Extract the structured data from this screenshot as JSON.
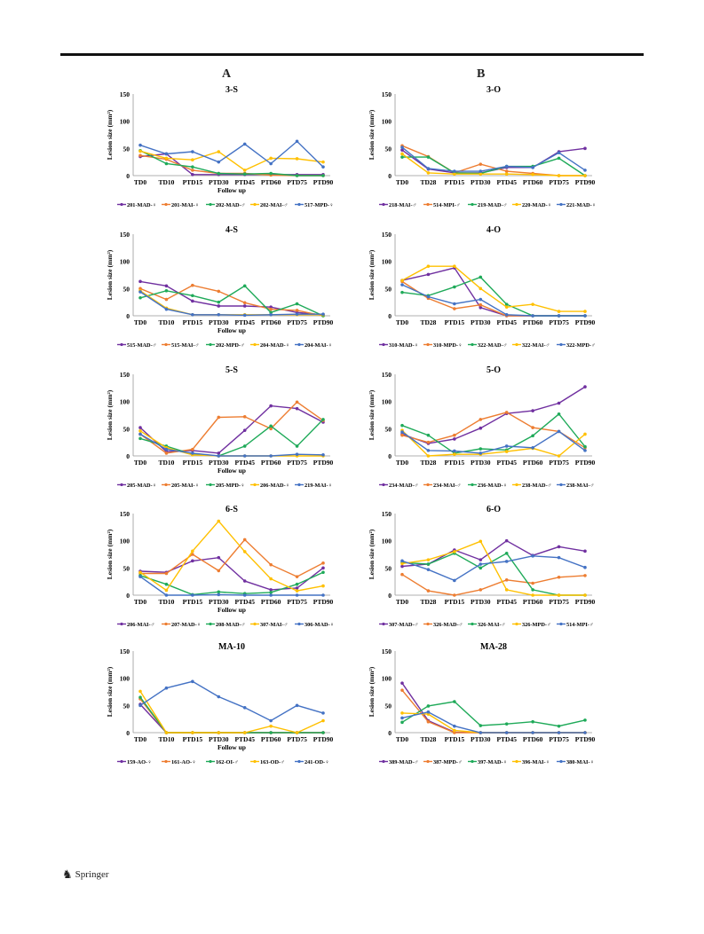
{
  "columns": [
    "A",
    "B"
  ],
  "footer": {
    "publisher": "Springer"
  },
  "chart_data": [
    {
      "type": "line",
      "title": "3-S",
      "xlabel": "Follow up",
      "ylabel": "Lesion size (mm²)",
      "ylim": [
        0,
        150
      ],
      "yticks": [
        0,
        50,
        100,
        150
      ],
      "grid": false,
      "legend": "bottom",
      "categories": [
        "TD0",
        "TD10",
        "PTD15",
        "PTD30",
        "PTD45",
        "PTD60",
        "PTD75",
        "PTD90"
      ],
      "series": [
        {
          "name": "201-MAD-♀",
          "color": "#7030a0",
          "values": [
            35,
            40,
            2,
            2,
            2,
            2,
            2,
            2
          ]
        },
        {
          "name": "201-MAI-♀",
          "color": "#ed7d31",
          "values": [
            37,
            30,
            10,
            4,
            4,
            1,
            0,
            0
          ]
        },
        {
          "name": "202-MAD-♂",
          "color": "#1faa59",
          "values": [
            46,
            22,
            16,
            4,
            3,
            4,
            0,
            0
          ]
        },
        {
          "name": "202-MAI-♂",
          "color": "#ffc000",
          "values": [
            45,
            32,
            29,
            44,
            10,
            32,
            31,
            25
          ]
        },
        {
          "name": "517-MPD-♀",
          "color": "#4472c4",
          "values": [
            56,
            40,
            44,
            25,
            58,
            22,
            63,
            16
          ]
        }
      ]
    },
    {
      "type": "line",
      "title": "3-O",
      "xlabel": "",
      "ylabel": "Lesion size (mm²)",
      "ylim": [
        0,
        150
      ],
      "yticks": [
        0,
        50,
        100,
        150
      ],
      "grid": false,
      "legend": "bottom",
      "categories": [
        "TD0",
        "TD28",
        "PTD15",
        "PTD30",
        "PTD45",
        "PTD60",
        "PTD75",
        "PTD90"
      ],
      "series": [
        {
          "name": "218-MAI-♂",
          "color": "#7030a0",
          "values": [
            47,
            12,
            5,
            5,
            15,
            15,
            44,
            50
          ]
        },
        {
          "name": "514-MPI-♂",
          "color": "#ed7d31",
          "values": [
            55,
            35,
            5,
            21,
            8,
            4,
            0,
            0
          ]
        },
        {
          "name": "219-MAD-♂",
          "color": "#1faa59",
          "values": [
            34,
            34,
            5,
            4,
            17,
            17,
            32,
            0
          ]
        },
        {
          "name": "220-MAD-♀",
          "color": "#ffc000",
          "values": [
            40,
            5,
            3,
            3,
            3,
            2,
            0,
            0
          ]
        },
        {
          "name": "221-MAD-♀",
          "color": "#4472c4",
          "values": [
            52,
            13,
            8,
            8,
            17,
            15,
            42,
            10
          ]
        }
      ]
    },
    {
      "type": "line",
      "title": "4-S",
      "xlabel": "Follow up",
      "ylabel": "Lesion size (mm²)",
      "ylim": [
        0,
        150
      ],
      "yticks": [
        0,
        50,
        100,
        150
      ],
      "grid": false,
      "legend": "bottom",
      "categories": [
        "TD0",
        "TD10",
        "PTD15",
        "PTD30",
        "PTD45",
        "PTD60",
        "PTD75",
        "PTD90"
      ],
      "series": [
        {
          "name": "515-MAD-♂",
          "color": "#7030a0",
          "values": [
            63,
            55,
            27,
            18,
            18,
            16,
            6,
            2
          ]
        },
        {
          "name": "515-MAI-♂",
          "color": "#ed7d31",
          "values": [
            50,
            30,
            56,
            45,
            24,
            12,
            10,
            0
          ]
        },
        {
          "name": "202-MPD-♂",
          "color": "#1faa59",
          "values": [
            33,
            46,
            37,
            25,
            55,
            6,
            22,
            0
          ]
        },
        {
          "name": "204-MAD-♀",
          "color": "#ffc000",
          "values": [
            46,
            14,
            2,
            2,
            2,
            2,
            2,
            2
          ]
        },
        {
          "name": "204-MAI-♀",
          "color": "#4472c4",
          "values": [
            44,
            12,
            2,
            2,
            1,
            2,
            3,
            3
          ]
        }
      ]
    },
    {
      "type": "line",
      "title": "4-O",
      "xlabel": "",
      "ylabel": "Lesion size (mm²)",
      "ylim": [
        0,
        150
      ],
      "yticks": [
        0,
        50,
        100,
        150
      ],
      "grid": false,
      "legend": "bottom",
      "categories": [
        "TD0",
        "TD28",
        "PTD15",
        "PTD30",
        "PTD45",
        "PTD60",
        "PTD75",
        "PTD90"
      ],
      "series": [
        {
          "name": "310-MAD-♀",
          "color": "#7030a0",
          "values": [
            65,
            76,
            88,
            15,
            0,
            0,
            0,
            0
          ]
        },
        {
          "name": "310-MPD-♀",
          "color": "#ed7d31",
          "values": [
            63,
            32,
            13,
            20,
            0,
            0,
            0,
            0
          ]
        },
        {
          "name": "322-MAD-♂",
          "color": "#1faa59",
          "values": [
            43,
            37,
            53,
            71,
            21,
            0,
            0,
            0
          ]
        },
        {
          "name": "322-MAI-♂",
          "color": "#ffc000",
          "values": [
            65,
            91,
            91,
            50,
            16,
            21,
            8,
            8
          ]
        },
        {
          "name": "322-MPD-♂",
          "color": "#4472c4",
          "values": [
            57,
            35,
            22,
            30,
            2,
            0,
            0,
            0
          ]
        }
      ]
    },
    {
      "type": "line",
      "title": "5-S",
      "xlabel": "Follow up",
      "ylabel": "Lesion size (mm²)",
      "ylim": [
        0,
        150
      ],
      "yticks": [
        0,
        50,
        100,
        150
      ],
      "grid": false,
      "legend": "bottom",
      "categories": [
        "TD0",
        "TD10",
        "PTD15",
        "PTD30",
        "PTD45",
        "PTD60",
        "PTD75",
        "PTD90"
      ],
      "series": [
        {
          "name": "205-MAD-♀",
          "color": "#7030a0",
          "values": [
            52,
            8,
            10,
            5,
            47,
            92,
            87,
            62
          ]
        },
        {
          "name": "205-MAI-♀",
          "color": "#ed7d31",
          "values": [
            40,
            5,
            12,
            71,
            72,
            50,
            99,
            65
          ]
        },
        {
          "name": "205-MPD-♀",
          "color": "#1faa59",
          "values": [
            32,
            18,
            3,
            0,
            18,
            55,
            18,
            67
          ]
        },
        {
          "name": "206-MAD-♀",
          "color": "#ffc000",
          "values": [
            46,
            15,
            2,
            0,
            0,
            0,
            0,
            0
          ]
        },
        {
          "name": "219-MAI-♀",
          "color": "#4472c4",
          "values": [
            40,
            12,
            5,
            0,
            0,
            0,
            3,
            2
          ]
        }
      ]
    },
    {
      "type": "line",
      "title": "5-O",
      "xlabel": "",
      "ylabel": "Lesion size (mm²)",
      "ylim": [
        0,
        150
      ],
      "yticks": [
        0,
        50,
        100,
        150
      ],
      "grid": false,
      "legend": "bottom",
      "categories": [
        "TD0",
        "TD28",
        "PTD15",
        "PTD30",
        "PTD45",
        "PTD60",
        "PTD75",
        "PTD90"
      ],
      "series": [
        {
          "name": "234-MAD-♂",
          "color": "#7030a0",
          "values": [
            40,
            23,
            31,
            51,
            78,
            83,
            97,
            127
          ]
        },
        {
          "name": "234-MAI-♂",
          "color": "#ed7d31",
          "values": [
            38,
            25,
            38,
            67,
            80,
            52,
            45,
            15
          ]
        },
        {
          "name": "236-MAD-♀",
          "color": "#1faa59",
          "values": [
            56,
            38,
            5,
            13,
            11,
            37,
            77,
            17
          ]
        },
        {
          "name": "238-MAD-♂",
          "color": "#ffc000",
          "values": [
            47,
            0,
            3,
            3,
            8,
            14,
            0,
            40
          ]
        },
        {
          "name": "238-MAI-♂",
          "color": "#4472c4",
          "values": [
            44,
            10,
            9,
            5,
            18,
            15,
            45,
            10
          ]
        }
      ]
    },
    {
      "type": "line",
      "title": "6-S",
      "xlabel": "Follow up",
      "ylabel": "Lesion size (mm²)",
      "ylim": [
        0,
        150
      ],
      "yticks": [
        0,
        50,
        100,
        150
      ],
      "grid": false,
      "legend": "bottom",
      "categories": [
        "TD0",
        "TD10",
        "PTD15",
        "PTD30",
        "PTD45",
        "PTD60",
        "PTD75",
        "PTD90"
      ],
      "series": [
        {
          "name": "206-MAI-♂",
          "color": "#7030a0",
          "values": [
            44,
            42,
            63,
            69,
            26,
            10,
            13,
            50
          ]
        },
        {
          "name": "207-MAD-♀",
          "color": "#ed7d31",
          "values": [
            40,
            40,
            75,
            45,
            102,
            56,
            34,
            59
          ]
        },
        {
          "name": "208-MAD-♂",
          "color": "#1faa59",
          "values": [
            36,
            20,
            1,
            6,
            3,
            5,
            20,
            42
          ]
        },
        {
          "name": "307-MAI-♂",
          "color": "#ffc000",
          "values": [
            42,
            9,
            81,
            136,
            80,
            30,
            8,
            17
          ]
        },
        {
          "name": "306-MAD-♀",
          "color": "#4472c4",
          "values": [
            34,
            0,
            0,
            1,
            0,
            0,
            0,
            0
          ]
        }
      ]
    },
    {
      "type": "line",
      "title": "6-O",
      "xlabel": "",
      "ylabel": "Lesion size (mm²)",
      "ylim": [
        0,
        150
      ],
      "yticks": [
        0,
        50,
        100,
        150
      ],
      "grid": false,
      "legend": "bottom",
      "categories": [
        "TD0",
        "TD28",
        "PTD15",
        "PTD30",
        "PTD45",
        "PTD60",
        "PTD75",
        "PTD90"
      ],
      "series": [
        {
          "name": "307-MAD-♂",
          "color": "#7030a0",
          "values": [
            53,
            57,
            83,
            65,
            100,
            73,
            89,
            81
          ]
        },
        {
          "name": "326-MAD-♂",
          "color": "#ed7d31",
          "values": [
            38,
            8,
            0,
            10,
            28,
            22,
            33,
            36
          ]
        },
        {
          "name": "326-MAI-♂",
          "color": "#1faa59",
          "values": [
            60,
            57,
            77,
            50,
            77,
            10,
            0,
            0
          ]
        },
        {
          "name": "326-MPD-♂",
          "color": "#ffc000",
          "values": [
            58,
            65,
            80,
            99,
            10,
            0,
            0,
            0
          ]
        },
        {
          "name": "514-MPI-♂",
          "color": "#4472c4",
          "values": [
            63,
            47,
            27,
            57,
            62,
            72,
            69,
            51
          ]
        }
      ]
    },
    {
      "type": "line",
      "title": "MA-10",
      "xlabel": "Follow up",
      "ylabel": "Lesion size (mm²)",
      "ylim": [
        0,
        150
      ],
      "yticks": [
        0,
        50,
        100,
        150
      ],
      "grid": false,
      "legend": "bottom",
      "categories": [
        "TD0",
        "TD10",
        "PTD15",
        "PTD30",
        "PTD45",
        "PTD60",
        "PTD75",
        "PTD90"
      ],
      "series": [
        {
          "name": "159-AO-♀",
          "color": "#7030a0",
          "values": [
            52,
            0,
            0,
            0,
            0,
            0,
            0,
            0
          ]
        },
        {
          "name": "161-AO-♀",
          "color": "#ed7d31",
          "values": [
            62,
            0,
            0,
            0,
            0,
            0,
            0,
            0
          ]
        },
        {
          "name": "162-OI-♂",
          "color": "#1faa59",
          "values": [
            65,
            0,
            0,
            0,
            0,
            0,
            0,
            0
          ]
        },
        {
          "name": "163-OD-♂",
          "color": "#ffc000",
          "values": [
            76,
            0,
            0,
            0,
            0,
            12,
            0,
            22
          ]
        },
        {
          "name": "241-OD-♀",
          "color": "#4472c4",
          "values": [
            50,
            82,
            94,
            66,
            46,
            22,
            50,
            36
          ]
        }
      ]
    },
    {
      "type": "line",
      "title": "MA-28",
      "xlabel": "",
      "ylabel": "Lesion size (mm²)",
      "ylim": [
        0,
        150
      ],
      "yticks": [
        0,
        50,
        100,
        150
      ],
      "grid": false,
      "legend": "bottom",
      "categories": [
        "TD0",
        "TD28",
        "PTD15",
        "PTD30",
        "PTD45",
        "PTD60",
        "PTD75",
        "PTD90"
      ],
      "series": [
        {
          "name": "389-MAD-♂",
          "color": "#7030a0",
          "values": [
            91,
            22,
            1,
            0,
            0,
            0,
            0,
            0
          ]
        },
        {
          "name": "387-MPD-♂",
          "color": "#ed7d31",
          "values": [
            78,
            20,
            0,
            0,
            0,
            0,
            0,
            0
          ]
        },
        {
          "name": "397-MAD-♀",
          "color": "#1faa59",
          "values": [
            19,
            49,
            57,
            13,
            16,
            20,
            12,
            23
          ]
        },
        {
          "name": "396-MAI-♀",
          "color": "#ffc000",
          "values": [
            36,
            34,
            4,
            0,
            0,
            0,
            0,
            0
          ]
        },
        {
          "name": "380-MAI-♀",
          "color": "#4472c4",
          "values": [
            27,
            38,
            12,
            0,
            0,
            0,
            0,
            0
          ]
        }
      ]
    }
  ]
}
